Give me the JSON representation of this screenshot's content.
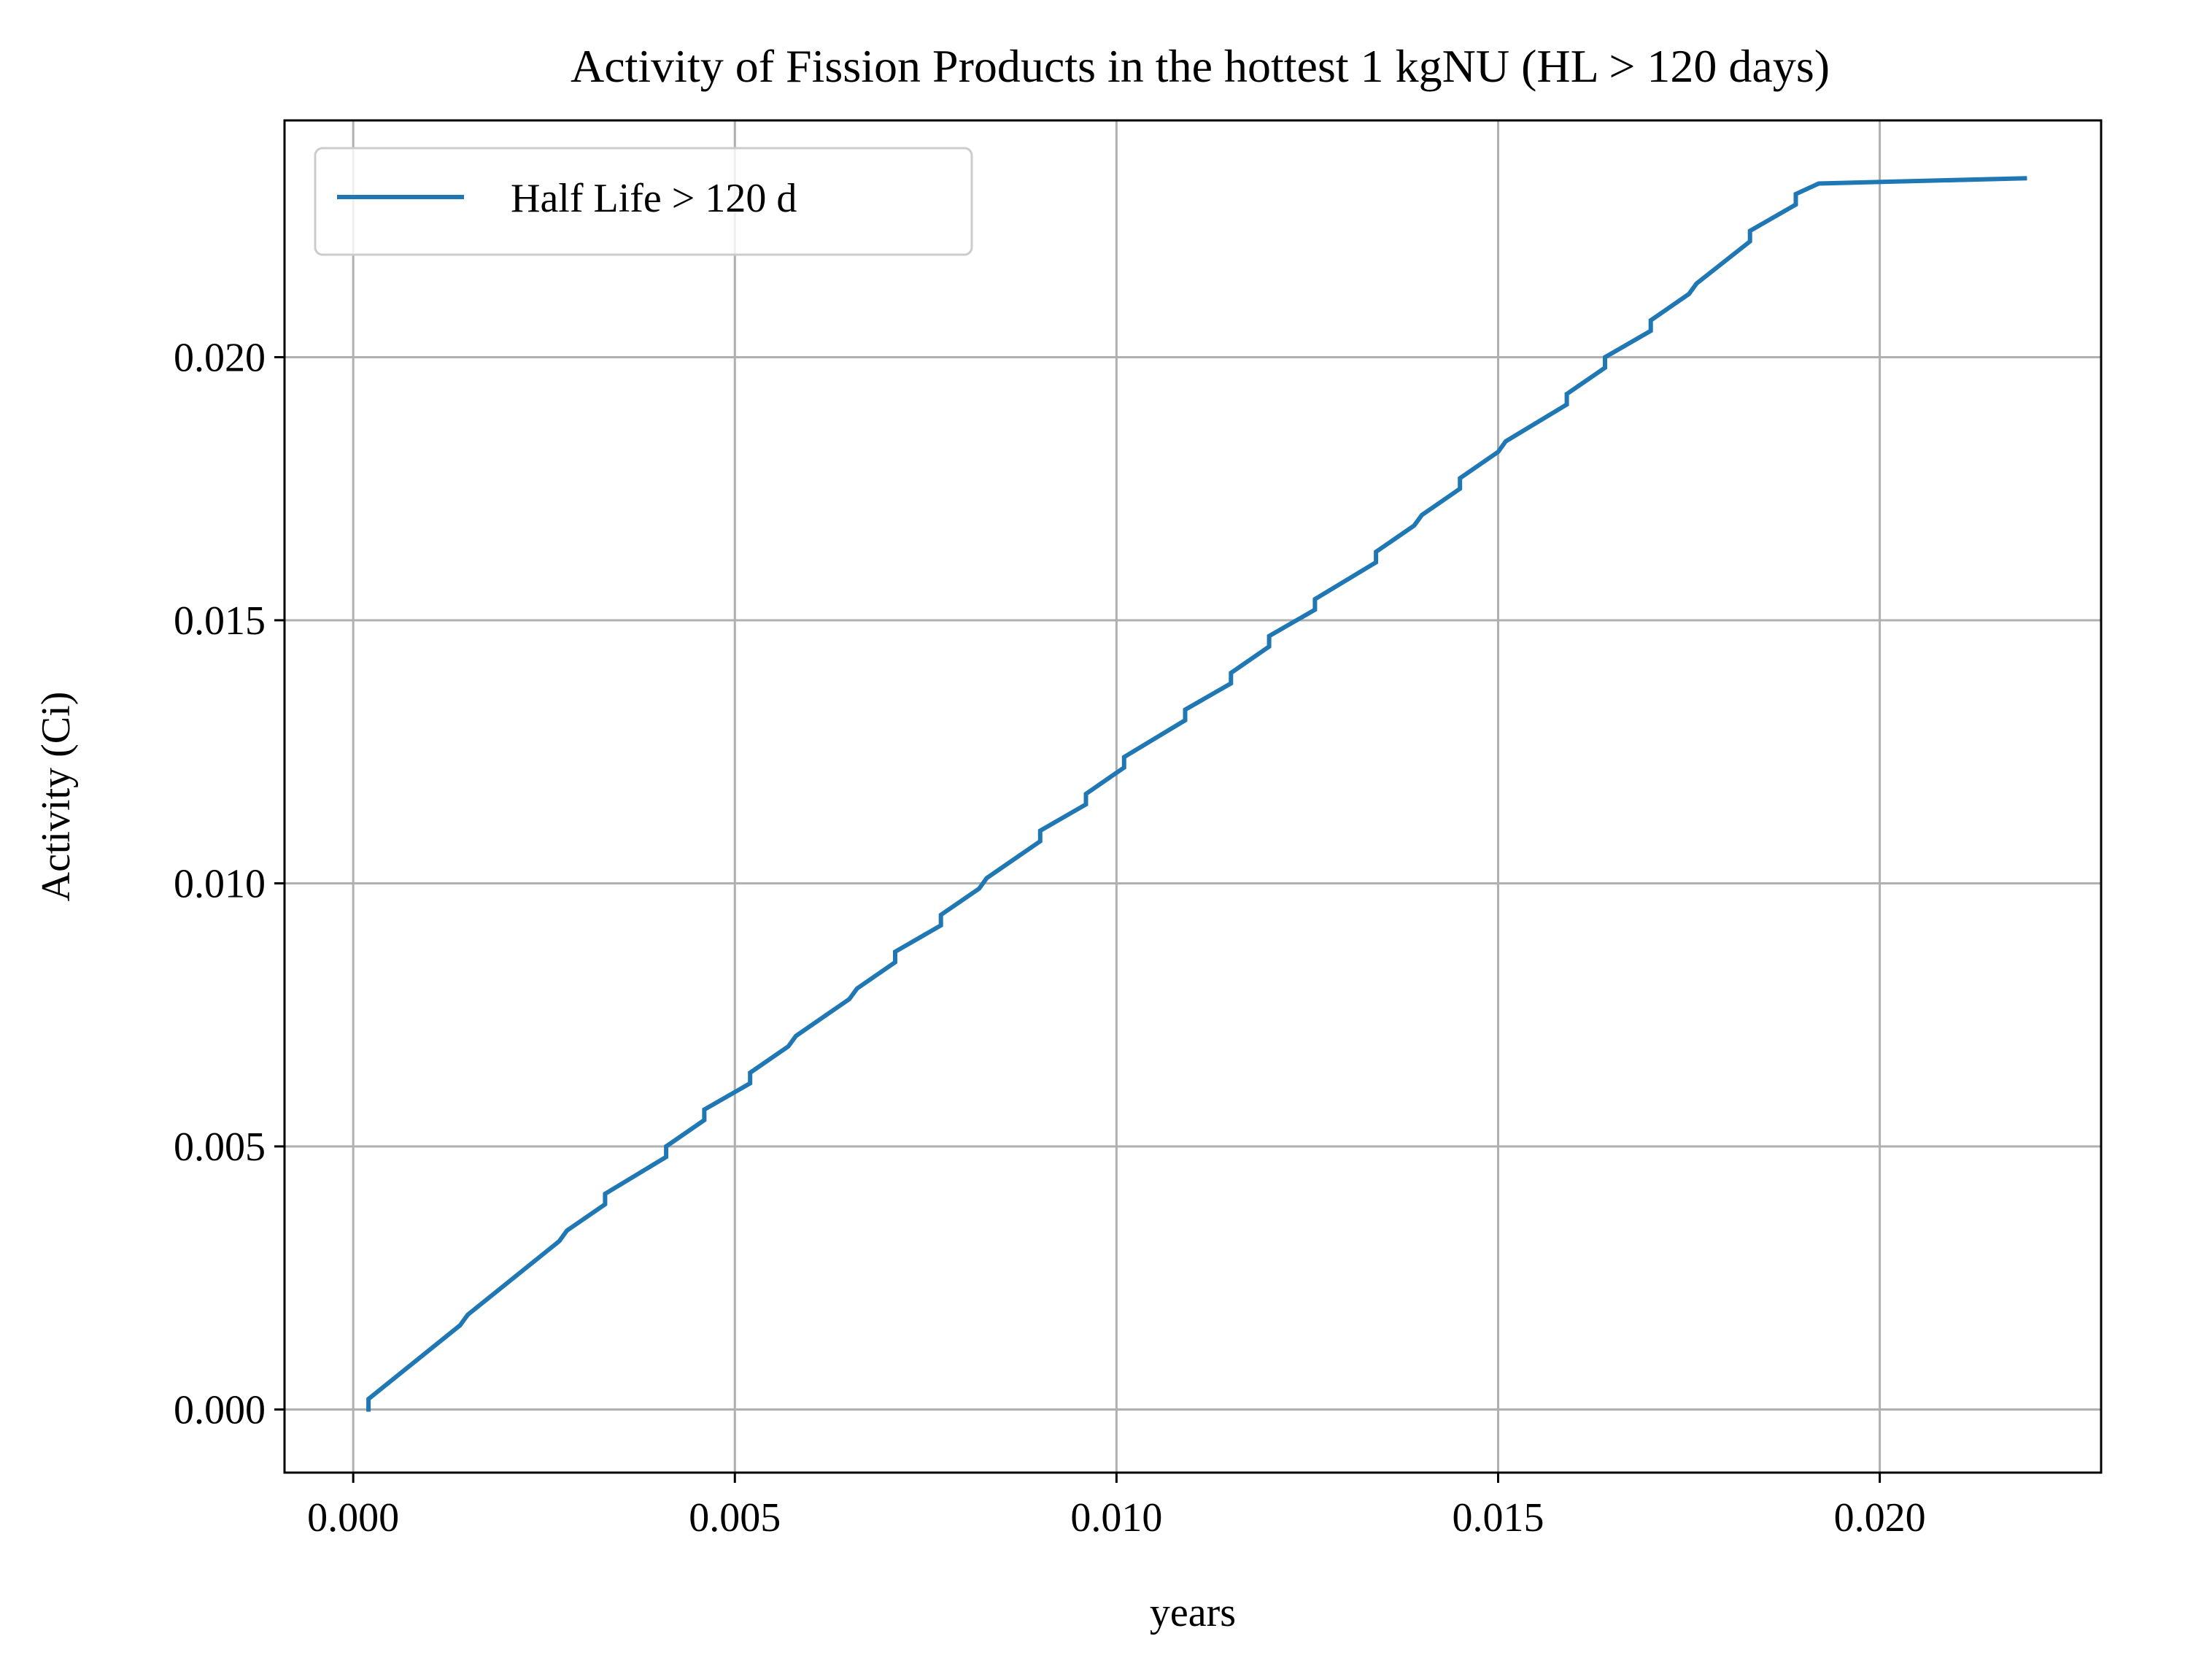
{
  "chart_data": {
    "type": "line",
    "title": "Activity of Fission Products in the hottest 1 kgNU (HL > 120 days)",
    "xlabel": "years",
    "ylabel": "Activity (Ci)",
    "xlim": [
      -0.0009,
      0.0229
    ],
    "ylim": [
      -0.0012,
      0.0245
    ],
    "xticks": [
      0.0,
      0.005,
      0.01,
      0.015,
      0.02
    ],
    "xtick_labels": [
      "0.000",
      "0.005",
      "0.010",
      "0.015",
      "0.020"
    ],
    "yticks": [
      0.0,
      0.005,
      0.01,
      0.015,
      0.02
    ],
    "ytick_labels": [
      "0.000",
      "0.005",
      "0.010",
      "0.015",
      "0.020"
    ],
    "grid": true,
    "legend_position": "upper-left",
    "series": [
      {
        "name": "Half Life > 120 d",
        "color": "#1f77b4",
        "x": [
          0.0002,
          0.0002,
          0.0014,
          0.0015,
          0.0027,
          0.0028,
          0.0033,
          0.0033,
          0.0041,
          0.0041,
          0.0046,
          0.0046,
          0.0052,
          0.0052,
          0.0057,
          0.0058,
          0.0065,
          0.0066,
          0.0071,
          0.0071,
          0.0077,
          0.0077,
          0.0082,
          0.0083,
          0.009,
          0.009,
          0.0096,
          0.0096,
          0.0101,
          0.0101,
          0.0109,
          0.0109,
          0.0115,
          0.0115,
          0.012,
          0.012,
          0.0126,
          0.0126,
          0.0134,
          0.0134,
          0.0139,
          0.014,
          0.0145,
          0.0145,
          0.015,
          0.0151,
          0.0159,
          0.0159,
          0.0164,
          0.0164,
          0.017,
          0.017,
          0.0175,
          0.0176,
          0.0183,
          0.0183,
          0.0189,
          0.0189,
          0.0192,
          0.0219
        ],
        "y": [
          0.0,
          0.0002,
          0.0016,
          0.0018,
          0.0032,
          0.0034,
          0.0039,
          0.0041,
          0.0048,
          0.005,
          0.0055,
          0.0057,
          0.0062,
          0.0064,
          0.0069,
          0.0071,
          0.0078,
          0.008,
          0.0085,
          0.0087,
          0.0092,
          0.0094,
          0.0099,
          0.0101,
          0.0108,
          0.011,
          0.0115,
          0.0117,
          0.0122,
          0.0124,
          0.0131,
          0.0133,
          0.0138,
          0.014,
          0.0145,
          0.0147,
          0.0152,
          0.0154,
          0.0161,
          0.0163,
          0.0168,
          0.017,
          0.0175,
          0.0177,
          0.0182,
          0.0184,
          0.0191,
          0.0193,
          0.0198,
          0.02,
          0.0205,
          0.0207,
          0.0212,
          0.0214,
          0.0222,
          0.0224,
          0.0229,
          0.0231,
          0.0233,
          0.0234
        ]
      }
    ]
  }
}
